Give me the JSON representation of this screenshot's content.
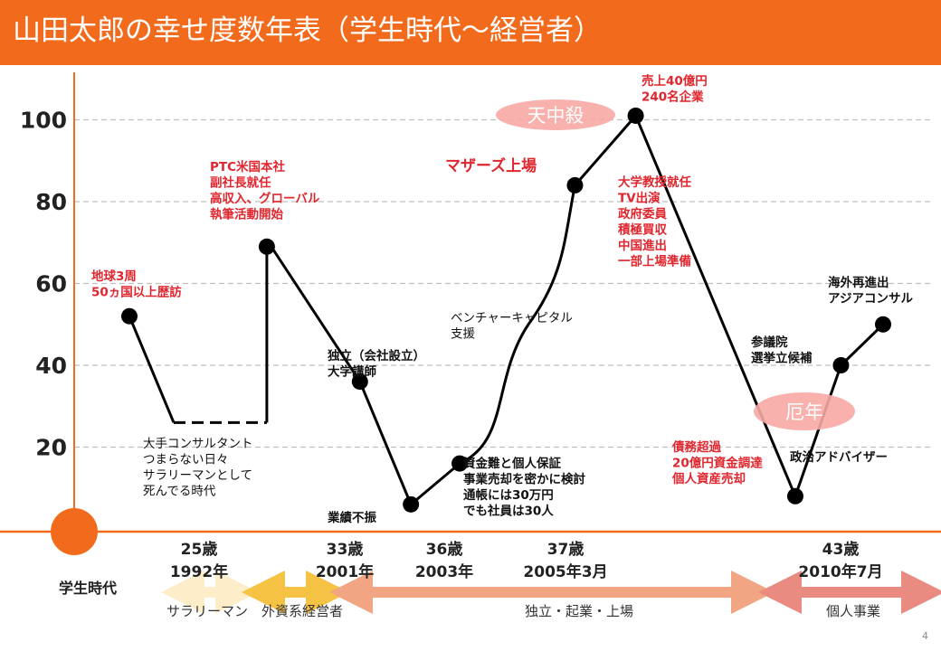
{
  "title": "山田太郎の幸せ度数年表（学生時代～経営者）",
  "page_number": "4",
  "colors": {
    "accent": "#f26b1d",
    "red_text": "#e0262e",
    "line": "#000000",
    "grid": "#bfbfbf",
    "bubble": "#f7a8a4"
  },
  "chart_data": {
    "type": "line",
    "title": "山田太郎の幸せ度数年表（学生時代～経営者）",
    "y_ticks": [
      "20",
      "40",
      "60",
      "80",
      "100"
    ],
    "ylim": [
      0,
      110
    ],
    "grid": true,
    "points": [
      {
        "x": 0.0,
        "y": 52
      },
      {
        "x": 1.0,
        "y": 26,
        "style": "solid"
      },
      {
        "x": 3.1,
        "y": 26,
        "style": "dashed"
      },
      {
        "x": 3.1,
        "y": 69,
        "style": "solid"
      },
      {
        "x": 3.2,
        "y": 69
      },
      {
        "x": 5.2,
        "y": 36
      },
      {
        "x": 6.35,
        "y": 6
      },
      {
        "x": 7.45,
        "y": 16
      },
      {
        "x": 9.0,
        "y": 50,
        "style": "curve"
      },
      {
        "x": 10.05,
        "y": 84,
        "style": "curve"
      },
      {
        "x": 11.42,
        "y": 101
      },
      {
        "x": 15.02,
        "y": 8
      },
      {
        "x": 16.05,
        "y": 40
      },
      {
        "x": 17.0,
        "y": 50
      }
    ],
    "markers": [
      0,
      3,
      5,
      6,
      7,
      9,
      10,
      11,
      12,
      13
    ],
    "annotations": [
      {
        "id": "ann-world-trip",
        "text": [
          "地球3周",
          "50ヵ国以上歴訪"
        ],
        "color": "red"
      },
      {
        "id": "ann-ptc",
        "text": [
          "PTC米国本社",
          "副社長就任",
          "高収入、グローバル",
          "執筆活動開始"
        ],
        "color": "red"
      },
      {
        "id": "ann-salaryman",
        "text": [
          "大手コンサルタント",
          "つまらない日々",
          "サラリーマンとして",
          "死んでる時代"
        ],
        "color": "black"
      },
      {
        "id": "ann-independence",
        "text": [
          "独立（会社設立）",
          "大学講師"
        ],
        "color": "black"
      },
      {
        "id": "ann-slump",
        "text": [
          "業績不振"
        ],
        "color": "black"
      },
      {
        "id": "ann-funding",
        "text": [
          "資金難と個人保証",
          "事業売却を密かに検討",
          "通帳には30万円",
          "でも社員は30人"
        ],
        "color": "black"
      },
      {
        "id": "ann-vc",
        "text": [
          "ベンチャーキャピタル",
          "支援"
        ],
        "color": "black"
      },
      {
        "id": "ann-mothers",
        "text": [
          "マザーズ上場"
        ],
        "color": "red"
      },
      {
        "id": "ann-sales",
        "text": [
          "売上40億円",
          "240名企業"
        ],
        "color": "red"
      },
      {
        "id": "ann-professor",
        "text": [
          "大学教授就任",
          "TV出演",
          "政府委員",
          "積極買収",
          "中国進出",
          "一部上場準備"
        ],
        "color": "red"
      },
      {
        "id": "ann-debt",
        "text": [
          "債務超過",
          "20億円資金調達",
          "個人資産売却"
        ],
        "color": "red"
      },
      {
        "id": "ann-advisor",
        "text": [
          "政治アドバイザー"
        ],
        "color": "black"
      },
      {
        "id": "ann-senate",
        "text": [
          "参議院",
          "選挙立候補"
        ],
        "color": "black"
      },
      {
        "id": "ann-overseas",
        "text": [
          "海外再進出",
          "アジアコンサル"
        ],
        "color": "black"
      }
    ],
    "bubbles": [
      {
        "id": "tenchusatsu",
        "text": "天中殺"
      },
      {
        "id": "yakudoshi",
        "text": "厄年"
      }
    ],
    "age_labels": [
      {
        "age": "25歳",
        "year": "1992年"
      },
      {
        "age": "33歳",
        "year": "2001年"
      },
      {
        "age": "36歳",
        "year": "2003年"
      },
      {
        "age": "37歳",
        "year": "2005年3月"
      },
      {
        "age": "43歳",
        "year": "2010年7月"
      }
    ],
    "phases": {
      "student": "学生時代",
      "items": [
        {
          "label": "サラリーマン",
          "color": "#fdeec9"
        },
        {
          "label": "外資系経営者",
          "color": "#f6c244"
        },
        {
          "label": "独立・起業・上場",
          "color": "#f2a582"
        },
        {
          "label": "個人事業",
          "color": "#e98b80"
        }
      ]
    }
  }
}
